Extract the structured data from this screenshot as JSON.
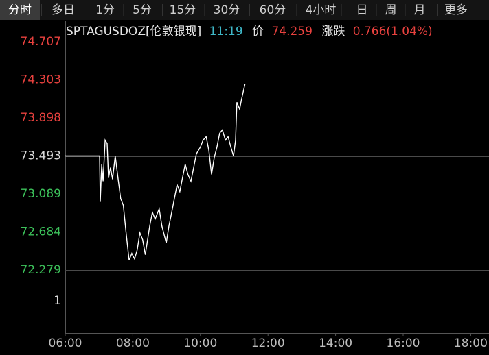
{
  "tabs": [
    "分时",
    "多日",
    "1分",
    "5分",
    "15分",
    "30分",
    "60分",
    "4小时",
    "日",
    "周",
    "月",
    "更多"
  ],
  "quote": {
    "symbol": "SPTAGUSDOZ[伦敦银现]",
    "time": "11:19",
    "price_label": "价",
    "price": "74.259",
    "change_label": "涨跌",
    "change": "0.766(1.04%)"
  },
  "chart_data": {
    "type": "line",
    "x": [
      6.0,
      7.016,
      7.037,
      7.08,
      7.12,
      7.18,
      7.24,
      7.28,
      7.34,
      7.4,
      7.48,
      7.56,
      7.64,
      7.72,
      7.8,
      7.89,
      7.97,
      8.05,
      8.13,
      8.21,
      8.29,
      8.37,
      8.5,
      8.58,
      8.66,
      8.78,
      8.86,
      8.99,
      9.07,
      9.15,
      9.25,
      9.31,
      9.39,
      9.47,
      9.55,
      9.63,
      9.72,
      9.8,
      9.88,
      10.0,
      10.08,
      10.17,
      10.25,
      10.33,
      10.41,
      10.49,
      10.57,
      10.65,
      10.74,
      10.82,
      10.9,
      10.98,
      11.04,
      11.08,
      11.16,
      11.22,
      11.32
    ],
    "series": [
      {
        "color": "#ffffff",
        "values": [
          73.493,
          73.493,
          73.004,
          73.405,
          73.223,
          73.661,
          73.624,
          73.259,
          73.369,
          73.245,
          73.493,
          73.259,
          73.04,
          72.967,
          72.675,
          72.383,
          72.456,
          72.398,
          72.493,
          72.675,
          72.602,
          72.442,
          72.748,
          72.894,
          72.821,
          72.931,
          72.748,
          72.566,
          72.748,
          72.894,
          73.077,
          73.186,
          73.113,
          73.259,
          73.405,
          73.296,
          73.223,
          73.369,
          73.515,
          73.588,
          73.661,
          73.697,
          73.551,
          73.296,
          73.478,
          73.588,
          73.734,
          73.77,
          73.661,
          73.697,
          73.588,
          73.493,
          73.661,
          74.063,
          73.99,
          74.099,
          74.259
        ]
      }
    ],
    "ylim": [
      72.279,
      74.707
    ],
    "yticks": [
      74.707,
      74.303,
      73.898,
      73.493,
      73.089,
      72.684,
      72.279
    ],
    "ytick_colors": [
      "#e8413e",
      "#e8413e",
      "#e8413e",
      "#d8d8d8",
      "#3cc15a",
      "#3cc15a",
      "#3cc15a"
    ],
    "volume_yticks": [
      1
    ],
    "hlines": [
      73.493,
      72.279
    ],
    "xlim": [
      6,
      18.5
    ],
    "xticks": [
      {
        "value": 6,
        "label": "06:00"
      },
      {
        "value": 8,
        "label": "08:00"
      },
      {
        "value": 10,
        "label": "10:00"
      },
      {
        "value": 12,
        "label": "12:00"
      },
      {
        "value": 14,
        "label": "14:00"
      },
      {
        "value": 16,
        "label": "16:00"
      },
      {
        "value": 18,
        "label": "18:00"
      }
    ]
  }
}
